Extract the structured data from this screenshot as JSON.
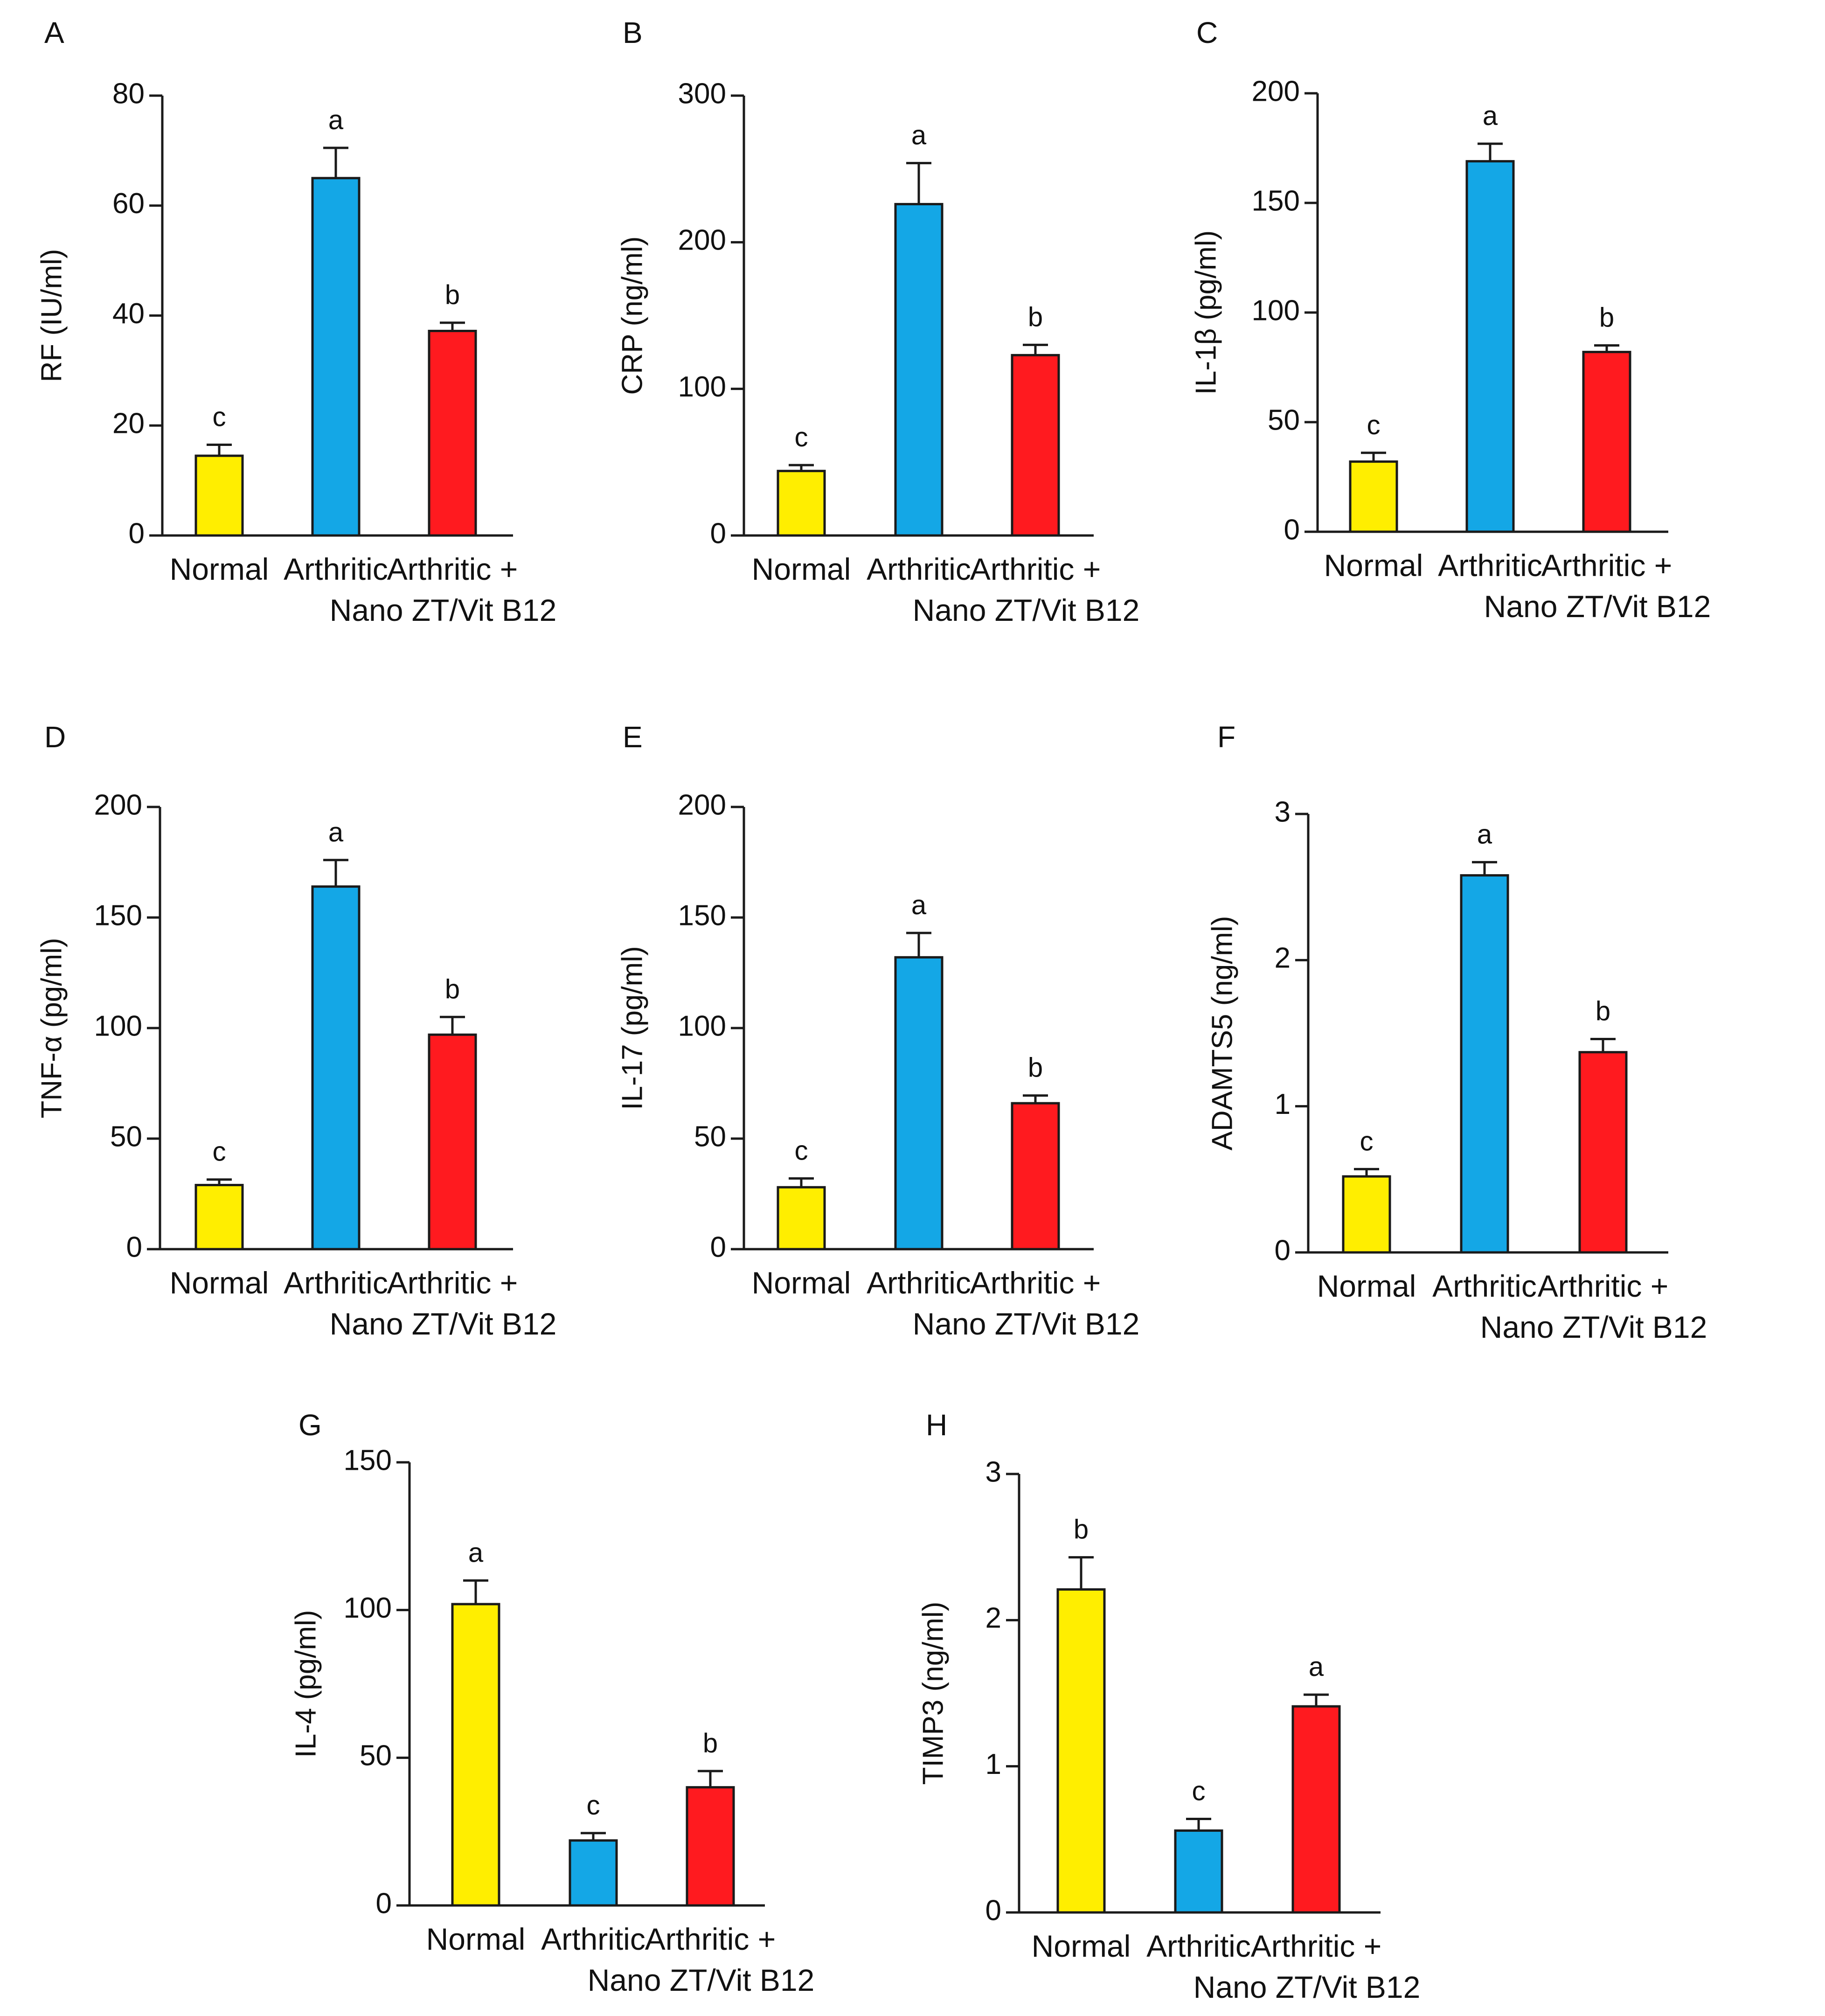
{
  "figure": {
    "categories": [
      "Normal",
      "Arthritic",
      "Arthritic +",
      "Nano ZT/Vit B12"
    ],
    "colors": {
      "normal": "#ffee00",
      "arthritic": "#14a7e6",
      "treated": "#ff1a1f"
    }
  },
  "chart_data": [
    {
      "panel": "A",
      "type": "bar",
      "ylabel": "RF (IU/ml)",
      "categories": [
        "Normal",
        "Arthritic",
        "Arthritic + Nano ZT/Vit B12"
      ],
      "values": [
        14.5,
        65,
        37.2
      ],
      "errors": [
        2,
        5.5,
        1.5
      ],
      "significance": [
        "c",
        "a",
        "b"
      ],
      "ylim": [
        0,
        80
      ],
      "yticks": [
        0,
        20,
        40,
        60,
        80
      ]
    },
    {
      "panel": "B",
      "type": "bar",
      "ylabel": "CRP (ng/ml)",
      "categories": [
        "Normal",
        "Arthritic",
        "Arthritic + Nano ZT/Vit B12"
      ],
      "values": [
        44,
        226,
        123
      ],
      "errors": [
        4,
        28,
        7
      ],
      "significance": [
        "c",
        "a",
        "b"
      ],
      "ylim": [
        0,
        300
      ],
      "yticks": [
        0,
        100,
        200,
        300
      ]
    },
    {
      "panel": "C",
      "type": "bar",
      "ylabel": "IL-1β (pg/ml)",
      "categories": [
        "Normal",
        "Arthritic",
        "Arthritic + Nano ZT/Vit B12"
      ],
      "values": [
        32,
        169,
        82
      ],
      "errors": [
        4,
        8,
        3
      ],
      "significance": [
        "c",
        "a",
        "b"
      ],
      "ylim": [
        0,
        200
      ],
      "yticks": [
        0,
        50,
        100,
        150,
        200
      ]
    },
    {
      "panel": "D",
      "type": "bar",
      "ylabel": "TNF-α (pg/ml)",
      "categories": [
        "Normal",
        "Arthritic",
        "Arthritic + Nano ZT/Vit B12"
      ],
      "values": [
        29,
        164,
        97
      ],
      "errors": [
        2.5,
        12,
        8
      ],
      "significance": [
        "c",
        "a",
        "b"
      ],
      "ylim": [
        0,
        200
      ],
      "yticks": [
        0,
        50,
        100,
        150,
        200
      ]
    },
    {
      "panel": "E",
      "type": "bar",
      "ylabel": "IL-17 (pg/ml)",
      "categories": [
        "Normal",
        "Arthritic",
        "Arthritic + Nano ZT/Vit B12"
      ],
      "values": [
        28,
        132,
        66
      ],
      "errors": [
        4,
        11,
        3.5
      ],
      "significance": [
        "c",
        "a",
        "b"
      ],
      "ylim": [
        0,
        200
      ],
      "yticks": [
        0,
        50,
        100,
        150,
        200
      ]
    },
    {
      "panel": "F",
      "type": "bar",
      "ylabel": "ADAMTS5  (ng/ml)",
      "categories": [
        "Normal",
        "Arthritic",
        "Arthritic + Nano ZT/Vit B12"
      ],
      "values": [
        0.52,
        2.58,
        1.37
      ],
      "errors": [
        0.05,
        0.09,
        0.09
      ],
      "significance": [
        "c",
        "a",
        "b"
      ],
      "ylim": [
        0,
        3
      ],
      "yticks": [
        0,
        1,
        2,
        3
      ]
    },
    {
      "panel": "G",
      "type": "bar",
      "ylabel": "IL-4 (pg/ml)",
      "categories": [
        "Normal",
        "Arthritic",
        "Arthritic + Nano ZT/Vit B12"
      ],
      "values": [
        102,
        22,
        40
      ],
      "errors": [
        8,
        2.5,
        5.5
      ],
      "significance": [
        "a",
        "c",
        "b"
      ],
      "ylim": [
        0,
        150
      ],
      "yticks": [
        0,
        50,
        100,
        150
      ]
    },
    {
      "panel": "H",
      "type": "bar",
      "ylabel": "TIMP3 (ng/ml)",
      "categories": [
        "Normal",
        "Arthritic",
        "Arthritic + Nano ZT/Vit B12"
      ],
      "values": [
        2.21,
        0.56,
        1.41
      ],
      "errors": [
        0.22,
        0.08,
        0.08
      ],
      "significance": [
        "b",
        "c",
        "a"
      ],
      "ylim": [
        0,
        3
      ],
      "yticks": [
        0,
        1,
        2,
        3
      ]
    }
  ]
}
